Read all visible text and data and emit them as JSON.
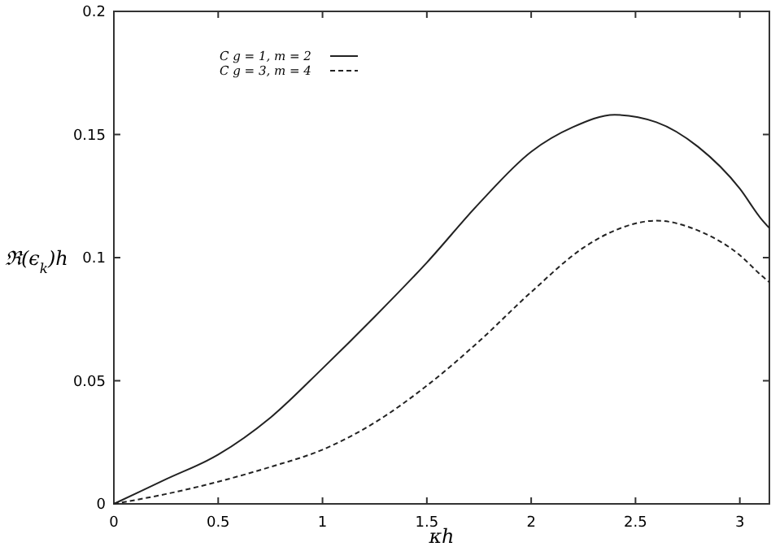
{
  "chart_data": {
    "type": "line",
    "xlabel": "κh",
    "ylabel": "ℜ(ϵ$_{k}$)h",
    "xlim": [
      0,
      3.1416
    ],
    "ylim": [
      0,
      0.2
    ],
    "xticks": [
      0,
      0.5,
      1,
      1.5,
      2,
      2.5,
      3
    ],
    "yticks": [
      0,
      0.05,
      0.1,
      0.15,
      0.2
    ],
    "grid": false,
    "legend": "top left",
    "marker": "none",
    "series": [
      {
        "name": "C  g = 1, m = 2",
        "color": "#222222",
        "line_style": "solid",
        "x": [
          0,
          0.25,
          0.5,
          0.75,
          1,
          1.25,
          1.5,
          1.75,
          2,
          2.2,
          2.4,
          2.6,
          2.8,
          3,
          3.1,
          3.1416
        ],
        "values": [
          0,
          0.01,
          0.02,
          0.035,
          0.055,
          0.076,
          0.098,
          0.122,
          0.143,
          0.153,
          0.158,
          0.155,
          0.145,
          0.128,
          0.116,
          0.112
        ]
      },
      {
        "name": "C  g = 3, m = 4",
        "color": "#222222",
        "line_style": "dashed",
        "x": [
          0,
          0.25,
          0.5,
          0.75,
          1,
          1.25,
          1.5,
          1.75,
          2,
          2.25,
          2.4,
          2.6,
          2.8,
          3,
          3.1,
          3.1416
        ],
        "values": [
          0,
          0.004,
          0.009,
          0.015,
          0.022,
          0.033,
          0.048,
          0.066,
          0.086,
          0.104,
          0.111,
          0.115,
          0.111,
          0.101,
          0.093,
          0.09
        ]
      }
    ]
  }
}
